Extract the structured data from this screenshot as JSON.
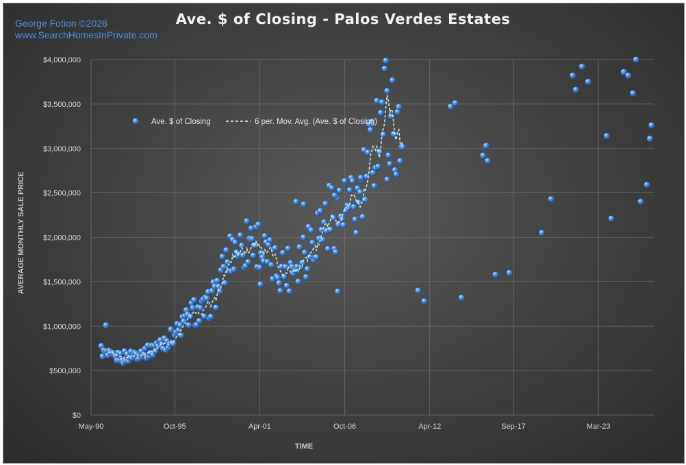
{
  "credit": {
    "line1": "George Fotion ©2026",
    "line2": "www.SearchHomesInPrivate.com"
  },
  "colors": {
    "background": "#3f3f3f",
    "point": "#3f86d6",
    "moving_average": "#bfe6f0",
    "grid": "#6e6e6e",
    "credit_text": "#4f8fe0"
  },
  "chart_data": {
    "type": "scatter",
    "title": "Ave. $ of Closing - Palos Verdes Estates",
    "xlabel": "TIME",
    "ylabel": "AVERAGE MONTHLY SALE PRICE",
    "ylim": [
      0,
      4000000
    ],
    "y_ticks": [
      0,
      500000,
      1000000,
      1500000,
      2000000,
      2500000,
      3000000,
      3500000,
      4000000
    ],
    "y_tick_labels": [
      "$0",
      "$500,000",
      "$1,000,000",
      "$1,500,000",
      "$2,000,000",
      "$2,500,000",
      "$3,000,000",
      "$3,500,000",
      "$4,000,000"
    ],
    "x_range": [
      "1990-05",
      "2026-10"
    ],
    "x_tick_labels": [
      "May-90",
      "Oct-95",
      "Apr-01",
      "Oct-06",
      "Apr-12",
      "Sep-17",
      "Mar-23"
    ],
    "grid": "both",
    "legend_position": "top-left (inside plot)",
    "legend": [
      "Ave. $ of Closing",
      "6 per. Mov. Avg. (Ave. $ of Closing)"
    ],
    "series": [
      {
        "name": "Ave. $ of Closing",
        "kind": "scatter",
        "start": "1991-01",
        "interval": "monthly",
        "values": [
          734000,
          711000,
          690000,
          690000,
          683000,
          665000,
          665000,
          658000,
          651000,
          644000,
          641000,
          645000,
          651000,
          647000,
          662000,
          649000,
          658000,
          642000,
          659000,
          647000,
          655000,
          661000,
          663000,
          666000,
          681000,
          671000,
          690000,
          690000,
          692000,
          700000,
          717000,
          697000,
          728000,
          703000,
          710000,
          714000,
          707000,
          733000,
          730000,
          719000,
          739000,
          770000,
          758000,
          797000,
          781000,
          786000,
          817000,
          805000,
          799000,
          843000,
          818000,
          839000,
          859000,
          838000,
          865000,
          876000,
          897000,
          915000,
          948000,
          938000,
          947000,
          966000,
          978000,
          1022000,
          1016000,
          1061000,
          1071000,
          1087000,
          1114000,
          1104000,
          1141000,
          1136000,
          1174000,
          1155000,
          1121000,
          1151000,
          1128000,
          1148000,
          1153000,
          1183000,
          1164000,
          1188000,
          1186000,
          1221000,
          1250000,
          1264000,
          1306000,
          1332000,
          1373000,
          1395000,
          1412000,
          1448000,
          1492000,
          1522000,
          1576000,
          1611000,
          1631000,
          1699000,
          1705000,
          1758000,
          1798000,
          1815000,
          1842000,
          1866000,
          1883000,
          1886000,
          1880000,
          1908000,
          1879000,
          1876000,
          1918000,
          1901000,
          1907000,
          1956000,
          1928000,
          1963000,
          1979000,
          1966000,
          1934000,
          1984000,
          1938000,
          1951000,
          1940000,
          1931000,
          1899000,
          1842000,
          1803000,
          1805000,
          1763000,
          1743000,
          1735000,
          1700000,
          1707000,
          1718000,
          1696000,
          1656000,
          1668000,
          1666000,
          1645000,
          1668000,
          1641000,
          1666000,
          1650000,
          1651000,
          1668000,
          1656000,
          1670000,
          1686000,
          1681000,
          1709000,
          1718000,
          1727000,
          1753000,
          1788000,
          1780000,
          1809000,
          1830000,
          1858000,
          1881000,
          1882000,
          1919000,
          1959000,
          1966000,
          1984000,
          2017000,
          2025000,
          2059000,
          2078000,
          2092000,
          2082000,
          2127000,
          2133000,
          2154000,
          2173000,
          2178000,
          2192000,
          2212000,
          2233000,
          2221000,
          2248000,
          2229000,
          2259000,
          2257000,
          2264000,
          2280000,
          2283000,
          2258000,
          2294000,
          2294000,
          2285000,
          2286000,
          2275000,
          2280000,
          2284000,
          2294000,
          2294000,
          2300000,
          2296000,
          2333000,
          2339000,
          2372000,
          2413000,
          2436000,
          2493000,
          2559000,
          2593000,
          2658000,
          2731000,
          2796000,
          2877000,
          2954000,
          3023000,
          3078000,
          3160000,
          3212000,
          3296000,
          3365000,
          3423000,
          3429000,
          3471000,
          3492000,
          3475000,
          3464000,
          3435000,
          3390000,
          3363000,
          3294000,
          3246000,
          3186000,
          3155000,
          3110000,
          3067000,
          3059000,
          3050000,
          3018000
        ],
        "extra_points": [
          [
            1991.3,
            1010000
          ],
          [
            1996.1,
            1010000
          ],
          [
            2000.7,
            2100000
          ],
          [
            2001.3,
            1470000
          ],
          [
            2003.6,
            2400000
          ],
          [
            2004.1,
            2370000
          ],
          [
            2006.1,
            2470000
          ],
          [
            2006.3,
            1390000
          ],
          [
            2007.8,
            2670000
          ],
          [
            2009.5,
            2650000
          ],
          [
            2011.5,
            1400000
          ],
          [
            2011.9,
            1280000
          ],
          [
            2013.6,
            3470000
          ],
          [
            2013.9,
            3510000
          ],
          [
            2014.3,
            1320000
          ],
          [
            2015.7,
            2920000
          ],
          [
            2015.9,
            3030000
          ],
          [
            2016.0,
            2860000
          ],
          [
            2016.5,
            1580000
          ],
          [
            2017.4,
            1600000
          ],
          [
            2019.5,
            2050000
          ],
          [
            2020.1,
            2430000
          ],
          [
            2021.5,
            3820000
          ],
          [
            2021.7,
            3660000
          ],
          [
            2022.1,
            3920000
          ],
          [
            2022.5,
            3750000
          ],
          [
            2023.7,
            3140000
          ],
          [
            2024.0,
            2210000
          ],
          [
            2024.8,
            3860000
          ],
          [
            2025.1,
            3820000
          ],
          [
            2025.4,
            3620000
          ],
          [
            2025.6,
            4000000
          ],
          [
            2025.9,
            2400000
          ],
          [
            2026.3,
            2590000
          ],
          [
            2026.5,
            3110000
          ],
          [
            2026.6,
            3260000
          ]
        ]
      },
      {
        "name": "6 per. Mov. Avg. (Ave. $ of Closing)",
        "kind": "line",
        "style": "dashed",
        "derived_from": "Ave. $ of Closing",
        "window": 6
      }
    ]
  }
}
